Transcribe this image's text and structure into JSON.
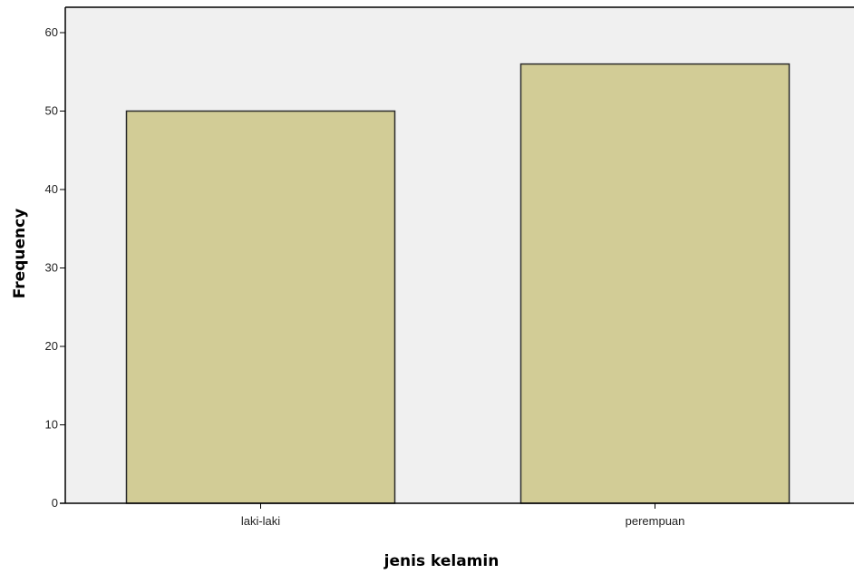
{
  "colors": {
    "plot_background": "#f0f0f0",
    "bar_fill": "#d2cc96",
    "bar_stroke": "#2b2b2b",
    "axis": "#000000"
  },
  "chart_data": {
    "type": "bar",
    "categories": [
      "laki-laki",
      "perempuan"
    ],
    "values": [
      50,
      56
    ],
    "title": "",
    "xlabel": "jenis kelamin",
    "ylabel": "Frequency",
    "ylim": [
      0,
      60
    ],
    "yticks": [
      "0",
      "10",
      "20",
      "30",
      "40",
      "50",
      "60"
    ],
    "grid": false,
    "legend": "none"
  }
}
